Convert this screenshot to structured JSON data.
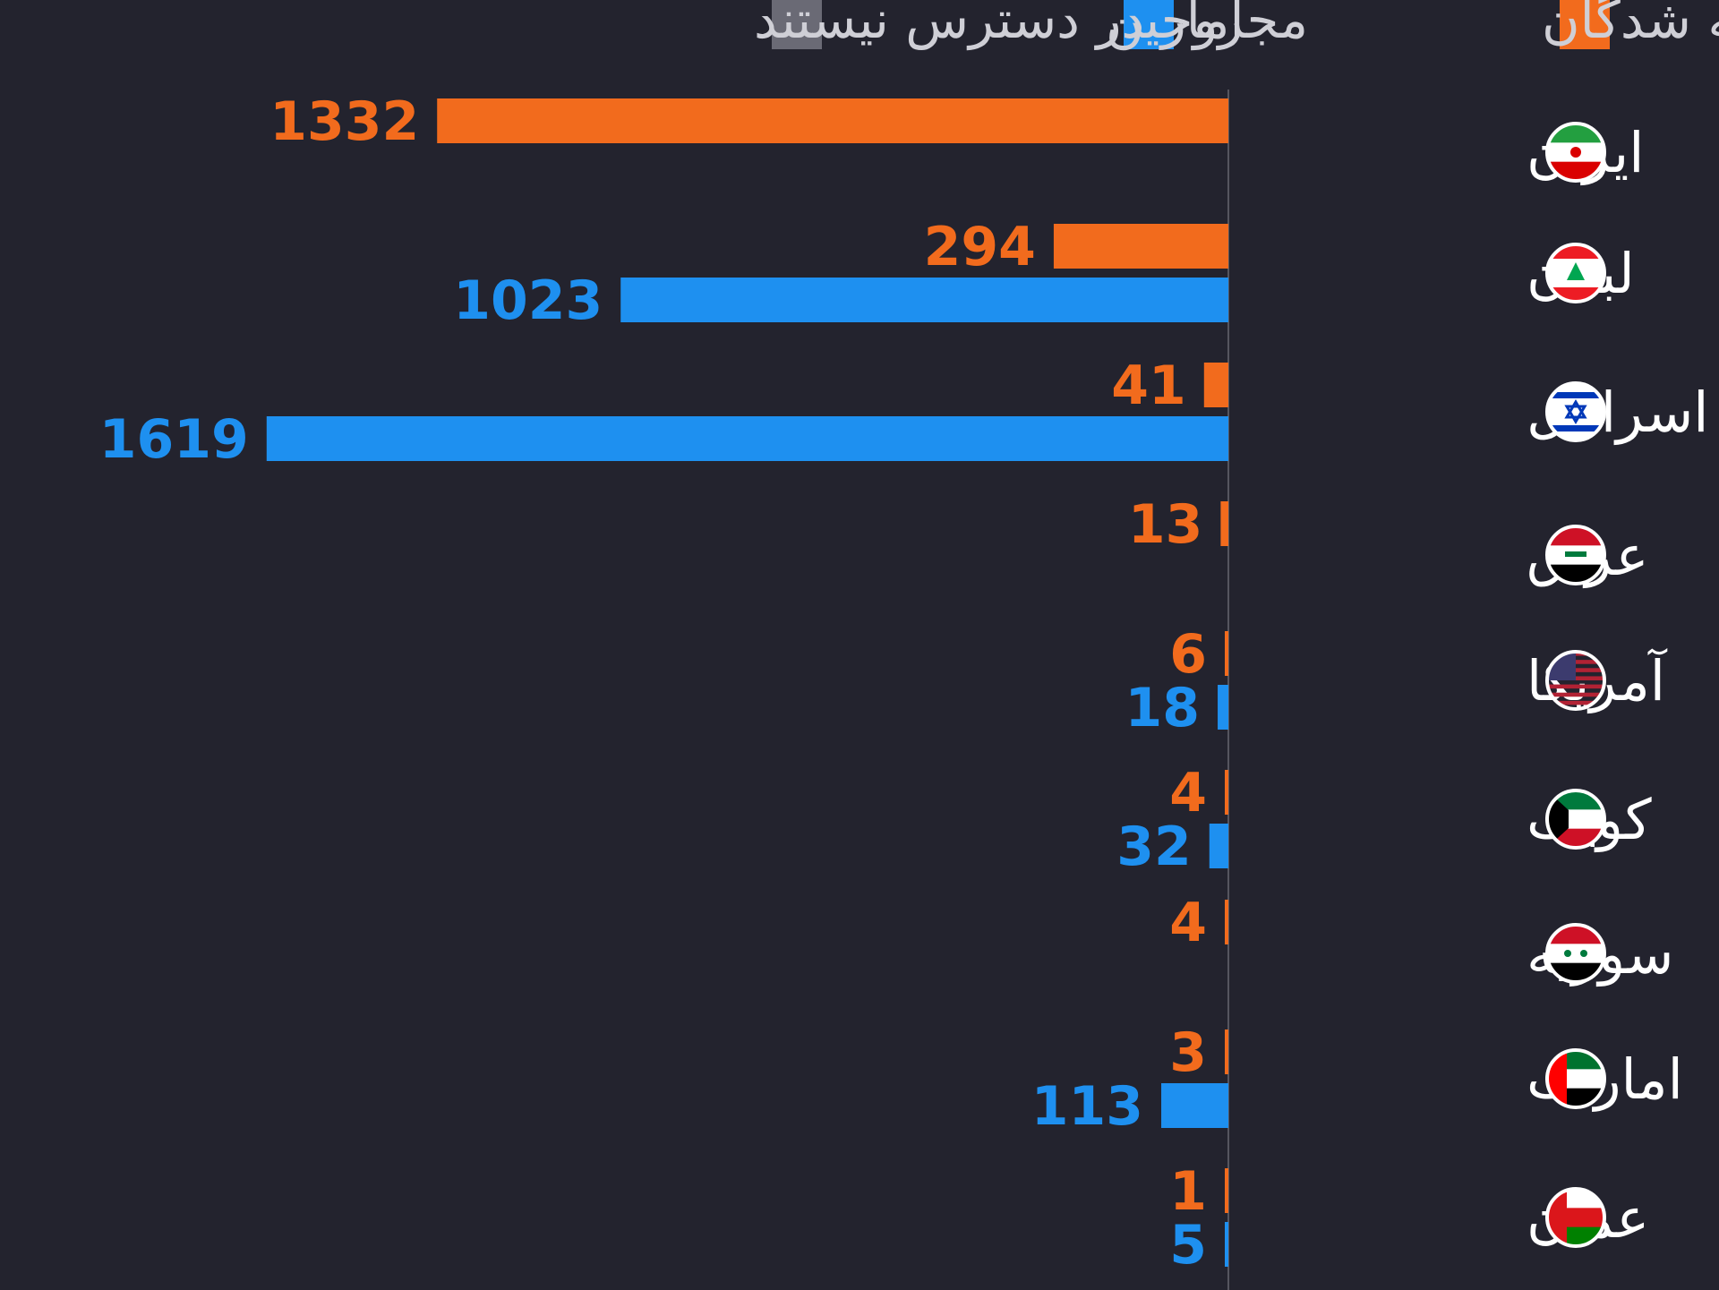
{
  "colors": {
    "background": "#23232e",
    "killed": "#f26b1d",
    "injured": "#1e90f0",
    "not_available": "#6a6a75",
    "axis": "#55555f",
    "label": "#ffffff"
  },
  "legend": {
    "items": [
      {
        "key": "killed",
        "label": "کشته شدگان",
        "color": "#f26b1d"
      },
      {
        "key": "injured",
        "label": "مجروحین",
        "color": "#1e90f0"
      },
      {
        "key": "not_available",
        "label": "آمار در دسترس نیستند",
        "color": "#6a6a75"
      }
    ]
  },
  "chart_data": {
    "type": "bar",
    "orientation": "horizontal",
    "categories": [
      "ایران",
      "لبنان",
      "اسرائیل",
      "عراق",
      "آمریکا",
      "کویت",
      "سوریه",
      "امارات",
      "عمان"
    ],
    "flag_icons": [
      "iran-flag-icon",
      "lebanon-flag-icon",
      "israel-flag-icon",
      "iraq-flag-icon",
      "usa-flag-icon",
      "kuwait-flag-icon",
      "syria-flag-icon",
      "uae-flag-icon",
      "oman-flag-icon"
    ],
    "series": [
      {
        "name": "کشته شدگان",
        "color": "#f26b1d",
        "values": [
          1332,
          294,
          41,
          13,
          6,
          4,
          4,
          3,
          1
        ]
      },
      {
        "name": "مجروحین",
        "color": "#1e90f0",
        "values": [
          null,
          1023,
          1619,
          null,
          18,
          32,
          null,
          113,
          5
        ]
      }
    ],
    "value_labels": true,
    "legend_position": "top",
    "grid": false
  }
}
